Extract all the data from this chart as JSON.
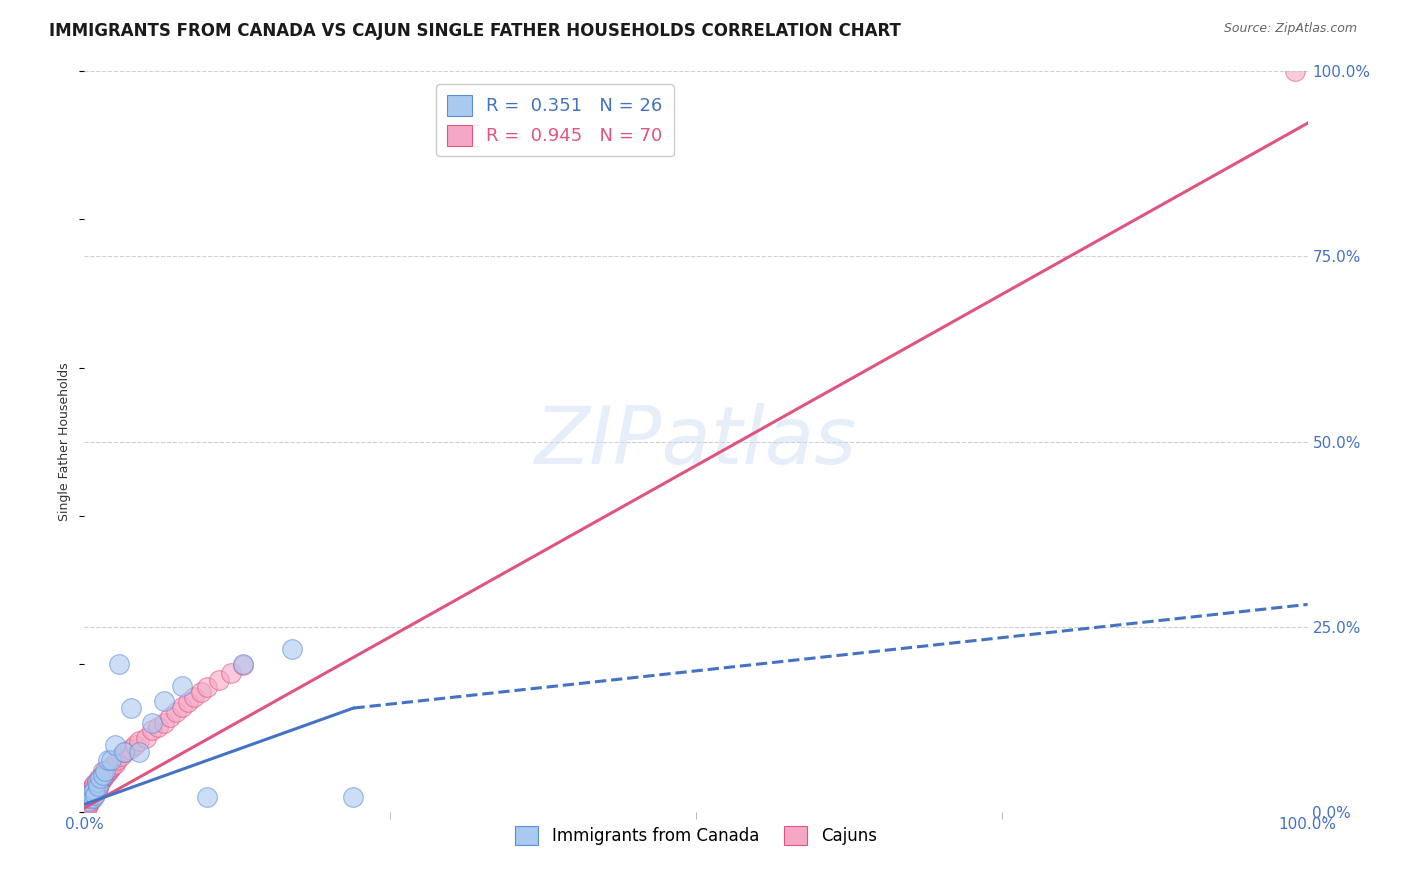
{
  "title": "IMMIGRANTS FROM CANADA VS CAJUN SINGLE FATHER HOUSEHOLDS CORRELATION CHART",
  "source": "Source: ZipAtlas.com",
  "ylabel": "Single Father Households",
  "xlim": [
    0,
    1.0
  ],
  "ylim": [
    0,
    1.0
  ],
  "ytick_positions": [
    0.0,
    0.25,
    0.5,
    0.75,
    1.0
  ],
  "ytick_labels": [
    "0.0%",
    "25.0%",
    "50.0%",
    "75.0%",
    "100.0%"
  ],
  "xtick_major": [
    0.0,
    1.0
  ],
  "xtick_minor": [
    0.25,
    0.5,
    0.75
  ],
  "background_color": "#ffffff",
  "watermark": "ZIPatlas",
  "canada_color": "#aac9f0",
  "cajun_color": "#f5a8c5",
  "canada_edge_color": "#5b8dd9",
  "cajun_edge_color": "#e05580",
  "canada_line_color": "#4472c4",
  "cajun_line_color": "#e05580",
  "grid_color": "#d0d0d0",
  "legend_color1": "#aac9f0",
  "legend_color2": "#f5a8c5",
  "canada_scatter": {
    "x": [
      0.003,
      0.004,
      0.005,
      0.006,
      0.007,
      0.008,
      0.009,
      0.01,
      0.011,
      0.013,
      0.015,
      0.017,
      0.019,
      0.022,
      0.025,
      0.028,
      0.032,
      0.038,
      0.045,
      0.055,
      0.065,
      0.08,
      0.1,
      0.13,
      0.17,
      0.22
    ],
    "y": [
      0.015,
      0.018,
      0.022,
      0.025,
      0.018,
      0.03,
      0.022,
      0.04,
      0.035,
      0.045,
      0.05,
      0.055,
      0.07,
      0.07,
      0.09,
      0.2,
      0.08,
      0.14,
      0.08,
      0.12,
      0.15,
      0.17,
      0.02,
      0.2,
      0.22,
      0.02
    ]
  },
  "cajun_scatter": {
    "x": [
      0.001,
      0.001,
      0.002,
      0.002,
      0.002,
      0.003,
      0.003,
      0.003,
      0.004,
      0.004,
      0.004,
      0.005,
      0.005,
      0.005,
      0.006,
      0.006,
      0.006,
      0.007,
      0.007,
      0.007,
      0.008,
      0.008,
      0.009,
      0.009,
      0.01,
      0.01,
      0.011,
      0.012,
      0.013,
      0.014,
      0.015,
      0.016,
      0.017,
      0.018,
      0.019,
      0.02,
      0.021,
      0.022,
      0.023,
      0.025,
      0.027,
      0.03,
      0.033,
      0.037,
      0.041,
      0.045,
      0.05,
      0.055,
      0.06,
      0.065,
      0.07,
      0.075,
      0.08,
      0.085,
      0.09,
      0.095,
      0.1,
      0.11,
      0.12,
      0.13,
      0.002,
      0.003,
      0.004,
      0.005,
      0.006,
      0.007,
      0.008,
      0.01,
      0.012,
      0.015
    ],
    "y": [
      0.005,
      0.01,
      0.008,
      0.015,
      0.02,
      0.01,
      0.018,
      0.025,
      0.012,
      0.02,
      0.028,
      0.015,
      0.022,
      0.03,
      0.018,
      0.025,
      0.032,
      0.02,
      0.028,
      0.035,
      0.022,
      0.032,
      0.025,
      0.035,
      0.028,
      0.038,
      0.032,
      0.038,
      0.04,
      0.042,
      0.045,
      0.048,
      0.05,
      0.052,
      0.054,
      0.056,
      0.058,
      0.06,
      0.062,
      0.065,
      0.07,
      0.075,
      0.08,
      0.085,
      0.09,
      0.095,
      0.1,
      0.11,
      0.115,
      0.12,
      0.128,
      0.135,
      0.142,
      0.148,
      0.155,
      0.162,
      0.168,
      0.178,
      0.188,
      0.198,
      0.005,
      0.012,
      0.018,
      0.022,
      0.028,
      0.032,
      0.038,
      0.04,
      0.045,
      0.055
    ]
  },
  "cajun_outlier_x": [
    0.99
  ],
  "cajun_outlier_y": [
    1.0
  ],
  "canada_line_solid": {
    "x0": 0.0,
    "y0": 0.01,
    "x1": 0.22,
    "y1": 0.14
  },
  "canada_line_dashed": {
    "x0": 0.22,
    "y0": 0.14,
    "x1": 1.0,
    "y1": 0.28
  },
  "cajun_line": {
    "x0": 0.0,
    "y0": 0.005,
    "x1": 1.0,
    "y1": 0.93
  },
  "title_fontsize": 12,
  "tick_fontsize": 11,
  "axis_label_fontsize": 9
}
